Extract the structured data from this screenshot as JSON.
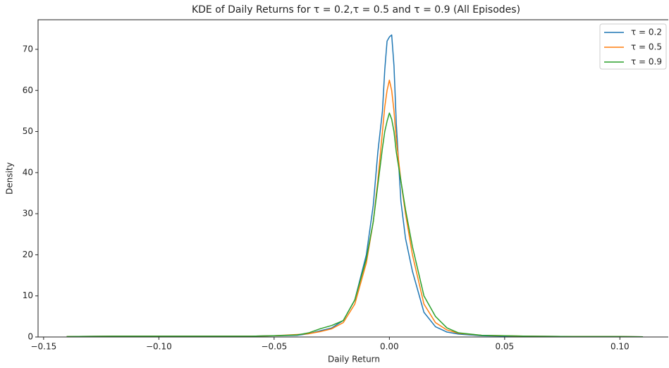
{
  "chart_data": {
    "type": "line",
    "title": "KDE of Daily Returns for τ = 0.2,τ = 0.5 and τ = 0.9 (All Episodes)",
    "xlabel": "Daily Return",
    "ylabel": "Density",
    "x": [
      -0.14,
      -0.12,
      -0.1,
      -0.08,
      -0.06,
      -0.05,
      -0.04,
      -0.035,
      -0.03,
      -0.025,
      -0.02,
      -0.015,
      -0.01,
      -0.007,
      -0.005,
      -0.003,
      -0.002,
      -0.001,
      0.0,
      0.001,
      0.002,
      0.003,
      0.005,
      0.007,
      0.01,
      0.015,
      0.02,
      0.025,
      0.03,
      0.04,
      0.05,
      0.06,
      0.08,
      0.1,
      0.11
    ],
    "series": [
      {
        "name": "τ = 0.2",
        "color": "#1f77b4",
        "values": [
          0.1,
          0.2,
          0.2,
          0.2,
          0.2,
          0.3,
          0.4,
          0.8,
          1.5,
          2.2,
          4,
          9,
          20,
          32,
          45,
          55,
          65,
          72,
          73,
          73.5,
          66,
          52,
          33,
          24,
          16,
          6,
          2.5,
          1.2,
          0.7,
          0.3,
          0.2,
          0.2,
          0.1,
          0.1,
          0.05
        ]
      },
      {
        "name": "τ = 0.5",
        "color": "#ff7f0e",
        "values": [
          0.1,
          0.2,
          0.2,
          0.2,
          0.2,
          0.3,
          0.6,
          0.8,
          1.3,
          2,
          3.5,
          8,
          18,
          28,
          38,
          50,
          56,
          60,
          62.5,
          60,
          55,
          48,
          38,
          30,
          20,
          8,
          3.5,
          1.7,
          0.9,
          0.4,
          0.3,
          0.2,
          0.1,
          0.1,
          0.05
        ]
      },
      {
        "name": "τ = 0.9",
        "color": "#2ca02c",
        "values": [
          0.1,
          0.2,
          0.2,
          0.2,
          0.2,
          0.3,
          0.5,
          1,
          2,
          2.8,
          4,
          9,
          19,
          28,
          37,
          46,
          50,
          52.5,
          54.5,
          53,
          50,
          45,
          38,
          31,
          22,
          10,
          5,
          2.2,
          1,
          0.4,
          0.3,
          0.2,
          0.1,
          0.1,
          0.05
        ]
      }
    ],
    "xlim": [
      -0.1524,
      0.121
    ],
    "ylim": [
      0,
      77.2
    ],
    "xticks": [
      {
        "value": -0.15,
        "label": "−0.15"
      },
      {
        "value": -0.1,
        "label": "−0.10"
      },
      {
        "value": -0.05,
        "label": "−0.05"
      },
      {
        "value": 0,
        "label": "0.00"
      },
      {
        "value": 0.05,
        "label": "0.05"
      },
      {
        "value": 0.1,
        "label": "0.10"
      }
    ],
    "yticks": [
      0,
      10,
      20,
      30,
      40,
      50,
      60,
      70
    ],
    "legend": "upper right"
  }
}
